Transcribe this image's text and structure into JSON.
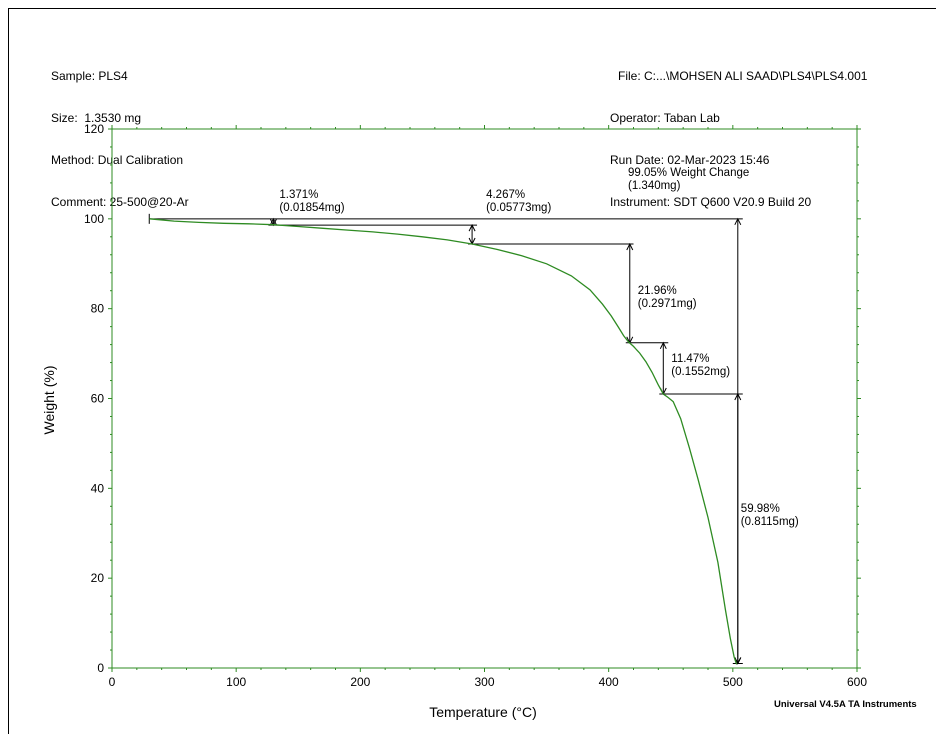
{
  "header": {
    "sample": "Sample: PLS4",
    "size": "Size:  1.3530 mg",
    "method": "Method: Dual Calibration",
    "comment": "Comment: 25-500@20-Ar",
    "file": "File: C:...\\MOHSEN ALI SAAD\\PLS4\\PLS4.001",
    "operator": "Operator: Taban Lab",
    "run_date": "Run Date: 02-Mar-2023 15:46",
    "instrument": "Instrument: SDT Q600 V20.9 Build 20"
  },
  "footer": "Universal V4.5A TA Instruments",
  "colors": {
    "curve": "#2e8b22",
    "ylabel": "#1f9a1f",
    "axes": "#2e8b22",
    "annotation": "#000000"
  },
  "chart_data": {
    "type": "line",
    "xlabel": "Temperature (°C)",
    "ylabel": "Weight (%)",
    "xlim": [
      0,
      600
    ],
    "ylim": [
      0,
      120
    ],
    "xticks": [
      0,
      100,
      200,
      300,
      400,
      500,
      600
    ],
    "yticks": [
      0,
      20,
      40,
      60,
      80,
      100,
      120
    ],
    "grid": false,
    "series": [
      {
        "x": [
          30,
          50,
          70,
          90,
          110,
          130,
          150,
          170,
          190,
          210,
          230,
          250,
          270,
          290,
          310,
          330,
          350,
          370,
          385,
          395,
          402,
          408,
          412,
          416,
          420,
          425,
          430,
          435,
          440,
          444,
          448,
          452,
          458,
          465,
          472,
          480,
          488,
          494,
          498,
          501,
          503
        ],
        "y": [
          100,
          99.5,
          99.2,
          99.0,
          98.9,
          98.7,
          98.3,
          97.9,
          97.5,
          97.1,
          96.6,
          96.0,
          95.3,
          94.4,
          93.2,
          91.8,
          90.0,
          87.3,
          84.2,
          81.0,
          78.4,
          75.8,
          74.0,
          72.6,
          71.6,
          70.1,
          68.2,
          65.8,
          63.0,
          61.0,
          60.2,
          59.3,
          55.5,
          49.0,
          42.0,
          33.5,
          23.5,
          13.0,
          6.5,
          2.5,
          0.8
        ]
      }
    ],
    "annotations": [
      {
        "pct": "1.371%",
        "mass": "(0.01854mg)",
        "x": 130,
        "y1": 100,
        "y2": 98.6
      },
      {
        "pct": "4.267%",
        "mass": "(0.05773mg)",
        "x": 290,
        "y1": 98.6,
        "y2": 94.4
      },
      {
        "pct": "21.96%",
        "mass": "(0.2971mg)",
        "x": 417,
        "y1": 94.4,
        "y2": 72.4
      },
      {
        "pct": "11.47%",
        "mass": "(0.1552mg)",
        "x": 444,
        "y1": 72.4,
        "y2": 61.0
      },
      {
        "pct": "59.98%",
        "mass": "(0.8115mg)",
        "x": 504,
        "y1": 61.0,
        "y2": 1.0
      },
      {
        "pct": "99.05% Weight Change",
        "mass": "(1.340mg)",
        "x": 504,
        "y1": 100,
        "y2": 1.0
      }
    ]
  }
}
